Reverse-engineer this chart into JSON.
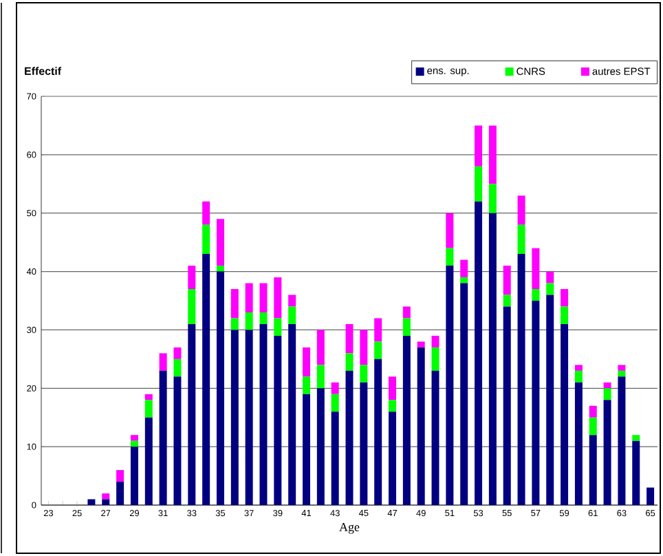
{
  "chart_data": {
    "type": "bar",
    "stacked": true,
    "xlabel": "Age",
    "ylabel": "Effectif",
    "categories": [
      "23",
      null,
      "25",
      null,
      "27",
      null,
      "29",
      null,
      "31",
      null,
      "33",
      null,
      "35",
      null,
      "37",
      null,
      "39",
      null,
      "41",
      null,
      "43",
      null,
      "45",
      null,
      "47",
      null,
      "49",
      null,
      "51",
      null,
      "53",
      null,
      "55",
      null,
      "57",
      null,
      "59",
      null,
      "61",
      null,
      "63",
      null,
      "65"
    ],
    "series": [
      {
        "name": "ens. sup.",
        "color": "#000080",
        "values": [
          0,
          0,
          0,
          1,
          1,
          4,
          10,
          15,
          23,
          22,
          31,
          43,
          40,
          30,
          30,
          31,
          29,
          31,
          19,
          20,
          16,
          23,
          21,
          25,
          16,
          29,
          27,
          23,
          41,
          38,
          52,
          50,
          34,
          43,
          35,
          36,
          31,
          21,
          12,
          18,
          22,
          11,
          3
        ]
      },
      {
        "name": "CNRS",
        "color": "#00ff00",
        "values": [
          0,
          0,
          0,
          0,
          0,
          0,
          1,
          3,
          0,
          3,
          6,
          5,
          1,
          2,
          3,
          2,
          3,
          3,
          3,
          4,
          3,
          3,
          3,
          3,
          2,
          3,
          0,
          4,
          3,
          1,
          6,
          5,
          2,
          5,
          2,
          2,
          3,
          2,
          3,
          2,
          1,
          1,
          0
        ]
      },
      {
        "name": "autres EPST",
        "color": "#ff00ff",
        "values": [
          0,
          0,
          0,
          0,
          1,
          2,
          1,
          1,
          3,
          2,
          4,
          4,
          8,
          5,
          5,
          5,
          7,
          2,
          5,
          6,
          2,
          5,
          6,
          4,
          4,
          2,
          1,
          2,
          6,
          3,
          7,
          10,
          5,
          5,
          7,
          2,
          3,
          1,
          2,
          1,
          1,
          0,
          0
        ]
      }
    ],
    "ylim": [
      0,
      70
    ],
    "yticks": [
      0,
      10,
      20,
      30,
      40,
      50,
      60,
      70
    ],
    "grid": "y",
    "legend": "top right"
  }
}
